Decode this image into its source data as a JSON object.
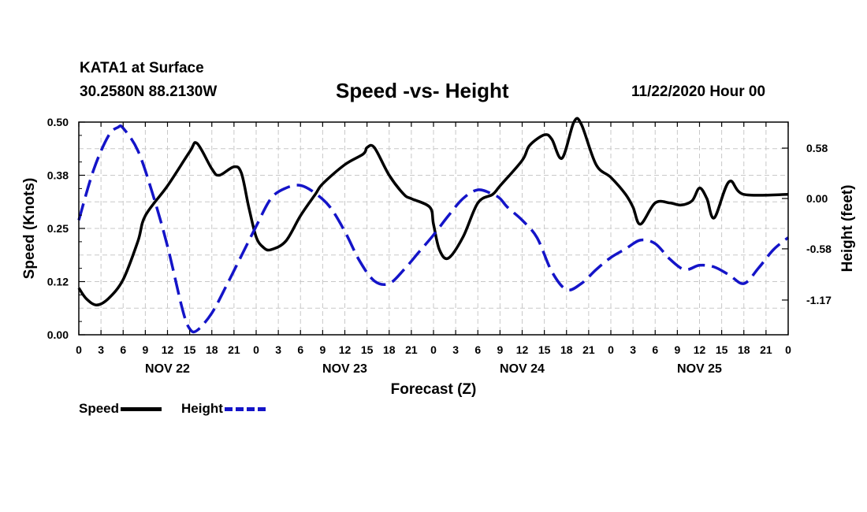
{
  "header": {
    "station": "KATA1 at Surface",
    "coords": "30.2580N 88.2130W",
    "title": "Speed -vs- Height",
    "timestamp": "11/22/2020 Hour 00"
  },
  "legend": {
    "speed_label": "Speed",
    "height_label": "Height"
  },
  "colors": {
    "speed": "#000000",
    "height": "#1414c8",
    "grid": "#c8c8c8"
  },
  "chart_data": {
    "type": "line",
    "title": "Speed -vs- Height",
    "xlabel": "Forecast (Z)",
    "ylabel": "Speed (Knots)",
    "y2label": "Height (feet)",
    "x_range_hours": [
      0,
      96
    ],
    "ylim": [
      0,
      0.5
    ],
    "y2lim": [
      -1.57,
      0.88
    ],
    "yticks": [
      0,
      0.125,
      0.25,
      0.375,
      0.5
    ],
    "ytick_labels": [
      "0.00",
      "0.12",
      "0.25",
      "0.38",
      "0.50"
    ],
    "y2ticks": [
      0.58,
      0,
      -0.58,
      -1.17
    ],
    "y2tick_labels": [
      "0.58",
      "0.00",
      "-0.58",
      "-1.17"
    ],
    "x_tick_hours": [
      0,
      3,
      6,
      9,
      12,
      15,
      18,
      21,
      24,
      27,
      30,
      33,
      36,
      39,
      42,
      45,
      48,
      51,
      54,
      57,
      60,
      63,
      66,
      69,
      72,
      75,
      78,
      81,
      84,
      87,
      90,
      93,
      96
    ],
    "x_tick_labels": [
      "0",
      "3",
      "6",
      "9",
      "12",
      "15",
      "18",
      "21",
      "0",
      "3",
      "6",
      "9",
      "12",
      "15",
      "18",
      "21",
      "0",
      "3",
      "6",
      "9",
      "12",
      "15",
      "18",
      "21",
      "0",
      "3",
      "6",
      "9",
      "12",
      "15",
      "18",
      "21",
      "0"
    ],
    "day_labels": [
      {
        "hour": 12,
        "label": "NOV 22"
      },
      {
        "hour": 36,
        "label": "NOV 23"
      },
      {
        "hour": 60,
        "label": "NOV 24"
      },
      {
        "hour": 84,
        "label": "NOV 25"
      }
    ],
    "grid": true,
    "legend_position": "bottom-left",
    "series": [
      {
        "name": "Speed",
        "axis": "left",
        "style": "solid",
        "x": [
          0,
          1,
          2.4,
          4,
          6,
          8,
          9,
          12,
          15,
          16,
          18,
          19,
          21,
          22,
          23,
          24,
          25,
          26,
          28,
          30,
          32,
          33,
          36,
          38.5,
          39,
          40,
          42,
          44,
          45,
          47.5,
          48,
          48.8,
          50,
          52,
          54,
          56,
          57,
          60,
          61,
          63,
          64,
          65.4,
          67,
          68,
          70,
          72,
          74,
          75,
          76,
          78,
          80,
          81.5,
          83,
          84,
          85,
          86,
          88,
          90,
          96
        ],
        "y": [
          0.11,
          0.085,
          0.07,
          0.085,
          0.13,
          0.22,
          0.28,
          0.35,
          0.43,
          0.45,
          0.39,
          0.375,
          0.395,
          0.38,
          0.3,
          0.23,
          0.205,
          0.2,
          0.22,
          0.28,
          0.33,
          0.355,
          0.4,
          0.425,
          0.44,
          0.44,
          0.375,
          0.33,
          0.32,
          0.3,
          0.26,
          0.2,
          0.18,
          0.23,
          0.31,
          0.33,
          0.35,
          0.41,
          0.445,
          0.47,
          0.46,
          0.415,
          0.5,
          0.495,
          0.4,
          0.37,
          0.33,
          0.3,
          0.26,
          0.31,
          0.31,
          0.305,
          0.315,
          0.345,
          0.32,
          0.275,
          0.36,
          0.33,
          0.33
        ]
      },
      {
        "name": "Height",
        "axis": "right",
        "style": "dashed",
        "x": [
          0,
          2,
          4,
          5.3,
          6,
          8,
          10,
          12,
          14,
          15,
          16,
          18,
          20,
          22,
          24,
          26,
          28,
          30,
          32,
          34,
          36,
          38,
          40,
          42,
          44,
          46,
          48,
          50,
          52,
          54,
          56,
          57,
          58,
          60,
          62,
          64,
          66,
          68,
          70,
          72,
          74,
          76,
          78,
          80,
          82,
          84,
          86,
          88,
          90,
          92,
          94,
          96
        ],
        "y": [
          -0.25,
          0.33,
          0.72,
          0.82,
          0.81,
          0.55,
          0.05,
          -0.55,
          -1.27,
          -1.5,
          -1.52,
          -1.32,
          -1.0,
          -0.66,
          -0.32,
          0.0,
          0.12,
          0.15,
          0.06,
          -0.1,
          -0.38,
          -0.72,
          -0.95,
          -0.98,
          -0.82,
          -0.62,
          -0.42,
          -0.2,
          0.0,
          0.1,
          0.05,
          0.0,
          -0.1,
          -0.25,
          -0.45,
          -0.84,
          -1.05,
          -0.98,
          -0.82,
          -0.68,
          -0.58,
          -0.48,
          -0.52,
          -0.7,
          -0.82,
          -0.77,
          -0.79,
          -0.88,
          -0.98,
          -0.8,
          -0.59,
          -0.45
        ]
      }
    ]
  }
}
